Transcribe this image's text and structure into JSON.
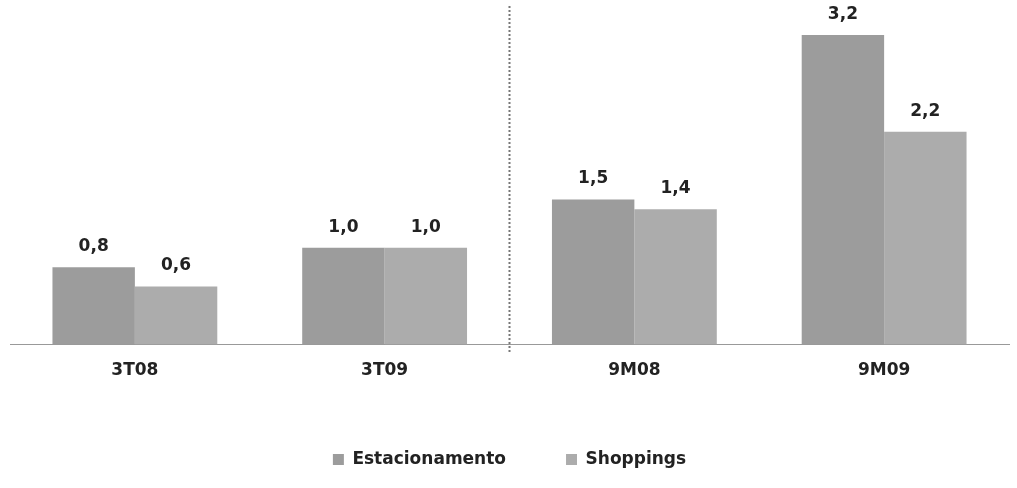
{
  "chart_data": {
    "type": "bar",
    "categories": [
      "3T08",
      "3T09",
      "9M08",
      "9M09"
    ],
    "series": [
      {
        "name": "Estacionamento",
        "color": "#9c9c9c",
        "values": [
          0.8,
          1.0,
          1.5,
          3.2
        ],
        "value_labels": [
          "0,8",
          "1,0",
          "1,5",
          "3,2"
        ]
      },
      {
        "name": "Shoppings",
        "color": "#acacac",
        "values": [
          0.6,
          1.0,
          1.4,
          2.2
        ],
        "value_labels": [
          "0,6",
          "1,0",
          "1,4",
          "2,2"
        ]
      }
    ],
    "ylim": [
      0,
      3.5
    ],
    "tick_labels": "x",
    "grid": false,
    "legend": "bottom"
  }
}
